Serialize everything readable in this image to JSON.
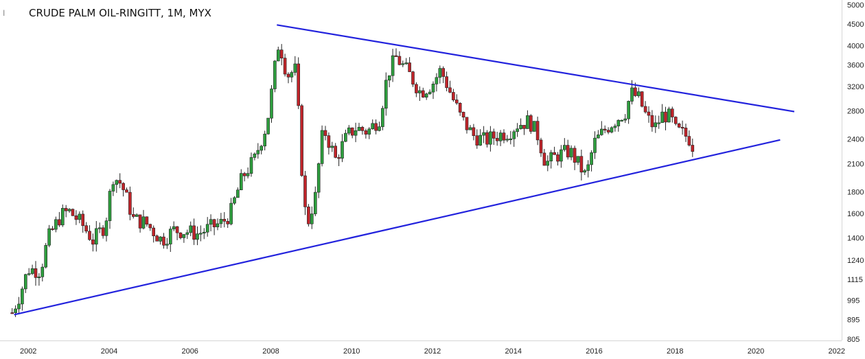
{
  "chart_data": {
    "type": "candlestick",
    "title": "CRUDE PALM OIL-RINGITT, 1M, MYX",
    "title_marker": "I",
    "x_ticks": [
      "2002",
      "2004",
      "2006",
      "2008",
      "2010",
      "2012",
      "2014",
      "2016",
      "2018",
      "2020",
      "2022"
    ],
    "y_ticks": [
      "5000",
      "4500",
      "4000",
      "3600",
      "3200",
      "2800",
      "2400",
      "2100",
      "1800",
      "1600",
      "1400",
      "1240",
      "1115",
      "995",
      "895",
      "805"
    ],
    "y_scale": "log",
    "ylim": [
      805,
      5000
    ],
    "xlim": [
      2001.3,
      2022.7
    ],
    "colors": {
      "up": "#2e9e3e",
      "down": "#c0242a",
      "trendline": "#2222dd"
    },
    "trendlines": [
      {
        "name": "upper",
        "x1": 2008.15,
        "y1": 4480,
        "x2": 2020.95,
        "y2": 2790
      },
      {
        "name": "lower",
        "x1": 2001.65,
        "y1": 920,
        "x2": 2020.6,
        "y2": 2390
      }
    ],
    "price_path": [
      [
        2001.6,
        930
      ],
      [
        2001.8,
        1030
      ],
      [
        2002.0,
        1180
      ],
      [
        2002.3,
        1170
      ],
      [
        2002.5,
        1400
      ],
      [
        2002.8,
        1580
      ],
      [
        2003.0,
        1620
      ],
      [
        2003.3,
        1520
      ],
      [
        2003.6,
        1380
      ],
      [
        2003.9,
        1500
      ],
      [
        2004.1,
        1960
      ],
      [
        2004.3,
        1880
      ],
      [
        2004.6,
        1550
      ],
      [
        2004.9,
        1520
      ],
      [
        2005.1,
        1450
      ],
      [
        2005.3,
        1380
      ],
      [
        2005.6,
        1460
      ],
      [
        2005.9,
        1450
      ],
      [
        2006.2,
        1430
      ],
      [
        2006.5,
        1480
      ],
      [
        2006.8,
        1520
      ],
      [
        2007.0,
        1600
      ],
      [
        2007.3,
        1950
      ],
      [
        2007.6,
        2150
      ],
      [
        2007.9,
        2600
      ],
      [
        2008.0,
        3000
      ],
      [
        2008.2,
        4100
      ],
      [
        2008.4,
        3400
      ],
      [
        2008.6,
        3500
      ],
      [
        2008.8,
        1750
      ],
      [
        2008.9,
        1500
      ],
      [
        2009.1,
        1750
      ],
      [
        2009.3,
        2550
      ],
      [
        2009.6,
        2150
      ],
      [
        2009.9,
        2450
      ],
      [
        2010.1,
        2550
      ],
      [
        2010.4,
        2500
      ],
      [
        2010.7,
        2700
      ],
      [
        2010.9,
        3450
      ],
      [
        2011.1,
        3750
      ],
      [
        2011.4,
        3450
      ],
      [
        2011.7,
        3100
      ],
      [
        2012.0,
        3250
      ],
      [
        2012.2,
        3500
      ],
      [
        2012.5,
        3000
      ],
      [
        2012.7,
        2700
      ],
      [
        2013.0,
        2450
      ],
      [
        2013.3,
        2380
      ],
      [
        2013.6,
        2450
      ],
      [
        2013.9,
        2500
      ],
      [
        2014.1,
        2600
      ],
      [
        2014.4,
        2650
      ],
      [
        2014.6,
        2450
      ],
      [
        2014.8,
        2100
      ],
      [
        2015.1,
        2200
      ],
      [
        2015.4,
        2250
      ],
      [
        2015.6,
        2100
      ],
      [
        2015.8,
        1950
      ],
      [
        2016.0,
        2350
      ],
      [
        2016.3,
        2550
      ],
      [
        2016.6,
        2700
      ],
      [
        2016.8,
        2800
      ],
      [
        2016.9,
        3100
      ],
      [
        2017.1,
        3000
      ],
      [
        2017.3,
        2700
      ],
      [
        2017.5,
        2550
      ],
      [
        2017.7,
        2750
      ],
      [
        2017.9,
        2700
      ],
      [
        2018.0,
        2520
      ],
      [
        2018.2,
        2470
      ],
      [
        2018.4,
        2390
      ],
      [
        2018.5,
        2180
      ]
    ]
  }
}
